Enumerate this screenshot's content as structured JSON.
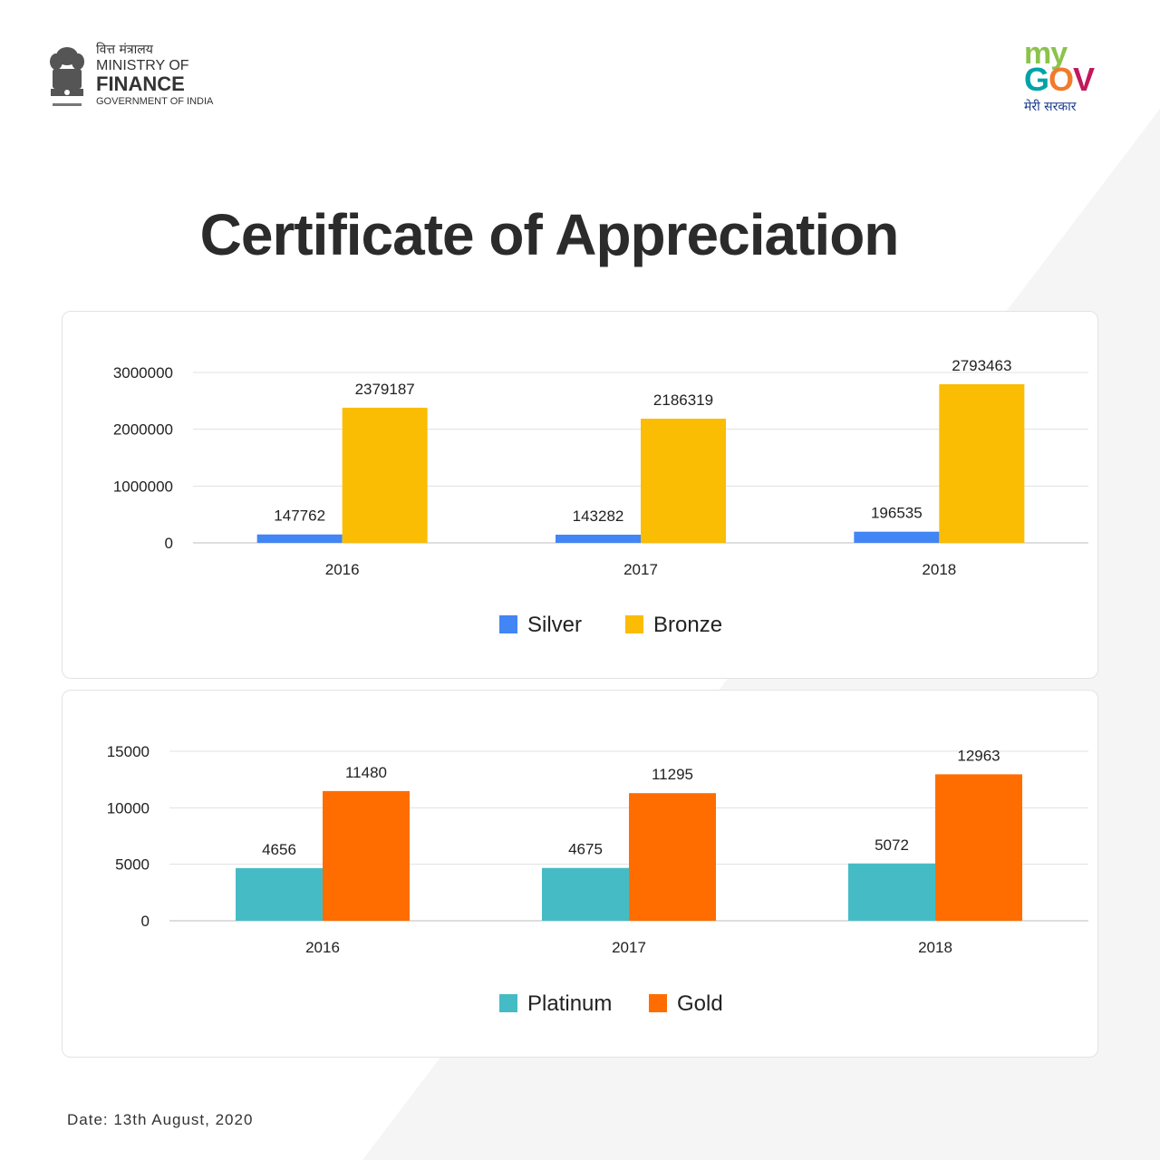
{
  "header": {
    "ministry_hindi": "वित्त मंत्रालय",
    "ministry_line1": "MINISTRY OF",
    "ministry_line2": "FINANCE",
    "ministry_line3": "GOVERNMENT OF INDIA",
    "emblem_icon": "national-emblem-icon"
  },
  "brand": {
    "logo_my": "my",
    "logo_gov": "GOV",
    "tagline": "मेरी सरकार"
  },
  "title": "Certificate of Appreciation",
  "footer": {
    "date": "Date: 13th August, 2020"
  },
  "colors": {
    "silver": "#4285f4",
    "bronze": "#fbbc04",
    "platinum": "#45bcc5",
    "gold": "#ff6d01"
  },
  "chart_data": [
    {
      "type": "bar",
      "categories": [
        "2016",
        "2017",
        "2018"
      ],
      "series": [
        {
          "name": "Silver",
          "values": [
            147762,
            143282,
            196535
          ],
          "color": "#4285f4"
        },
        {
          "name": "Bronze",
          "values": [
            2379187,
            2186319,
            2793463
          ],
          "color": "#fbbc04"
        }
      ],
      "yticks": [
        0,
        1000000,
        2000000,
        3000000
      ],
      "ylim": [
        0,
        3000000
      ],
      "data_labels": true,
      "grid": true,
      "legend_position": "bottom"
    },
    {
      "type": "bar",
      "categories": [
        "2016",
        "2017",
        "2018"
      ],
      "series": [
        {
          "name": "Platinum",
          "values": [
            4656,
            4675,
            5072
          ],
          "color": "#45bcc5"
        },
        {
          "name": "Gold",
          "values": [
            11480,
            11295,
            12963
          ],
          "color": "#ff6d01"
        }
      ],
      "yticks": [
        0,
        5000,
        10000,
        15000
      ],
      "ylim": [
        0,
        15000
      ],
      "data_labels": true,
      "grid": true,
      "legend_position": "bottom"
    }
  ]
}
